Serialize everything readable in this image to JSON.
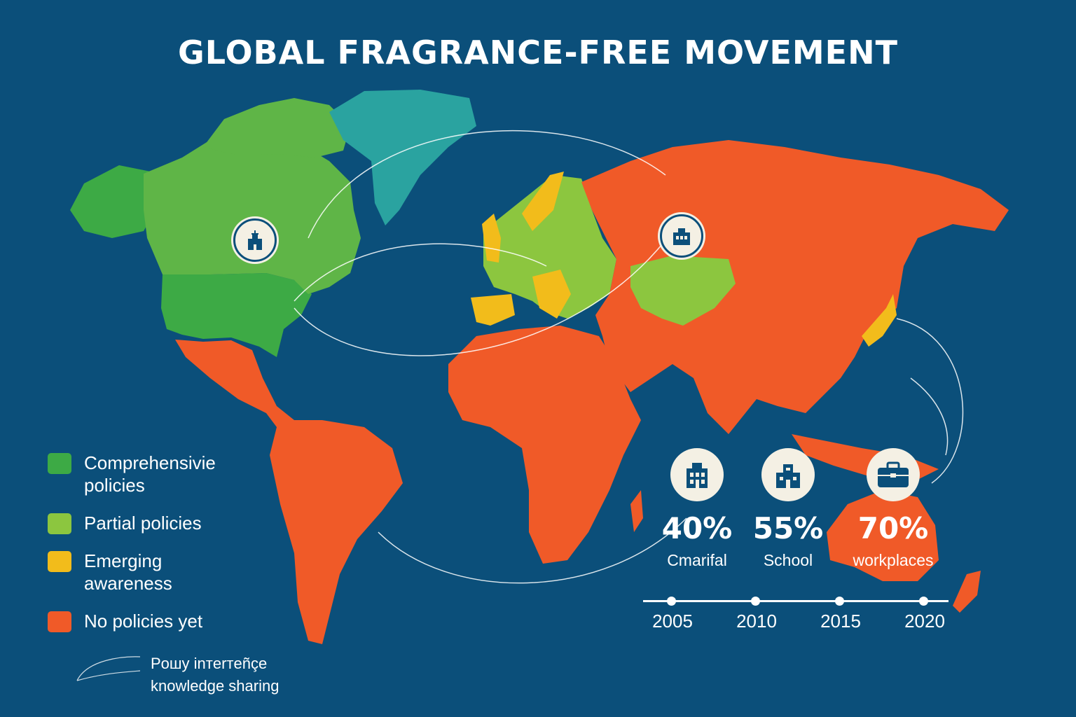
{
  "title": "GLOBAL FRAGRANCE-FREE MOVEMENT",
  "colors": {
    "background": "#0b4f7a",
    "comprehensive": "#3daa45",
    "partial": "#8cc63f",
    "emerging": "#f2bc1b",
    "none": "#f05a28",
    "greenland": "#2aa3a0"
  },
  "legend": [
    {
      "label": "Comprehensivie policies",
      "color": "#3daa45"
    },
    {
      "label": "Partial policies",
      "color": "#8cc63f"
    },
    {
      "label": "Emerging awareness",
      "color": "#f2bc1b"
    },
    {
      "label": "No policies yet",
      "color": "#f05a28"
    }
  ],
  "regions": [
    {
      "name": "Alaska / USA",
      "status": "comprehensive"
    },
    {
      "name": "Canada",
      "status": "partial"
    },
    {
      "name": "Greenland",
      "status": "other"
    },
    {
      "name": "Europe (north/central)",
      "status": "partial"
    },
    {
      "name": "Europe (south/west)",
      "status": "emerging"
    },
    {
      "name": "Kazakhstan / Central Asia",
      "status": "partial"
    },
    {
      "name": "Japan",
      "status": "emerging"
    },
    {
      "name": "Latin America",
      "status": "none"
    },
    {
      "name": "Africa",
      "status": "none"
    },
    {
      "name": "Russia / Asia",
      "status": "none"
    },
    {
      "name": "Australia / Oceania",
      "status": "none"
    }
  ],
  "map_pins": [
    {
      "icon": "hospital-icon",
      "region": "North America"
    },
    {
      "icon": "building-icon",
      "region": "Russia"
    }
  ],
  "stats": [
    {
      "icon": "office-building-icon",
      "value": "40%",
      "label": "Cmarifal"
    },
    {
      "icon": "school-icon",
      "value": "55%",
      "label": "School"
    },
    {
      "icon": "briefcase-icon",
      "value": "70%",
      "label": "workplaces"
    }
  ],
  "timeline": [
    "2005",
    "2010",
    "2015",
    "2020"
  ],
  "flow_legend": {
    "line1": "Poшy inтerтeñçe",
    "line2": "knowledge sharing"
  }
}
